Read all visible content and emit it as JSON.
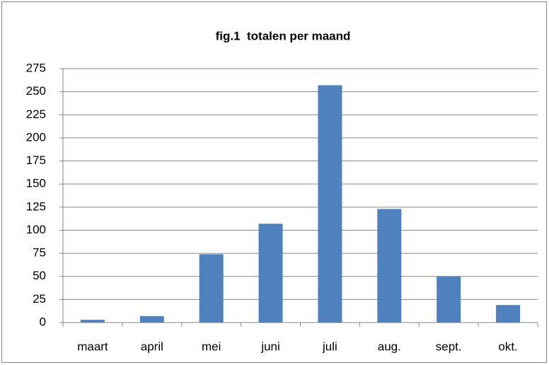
{
  "chart_data": {
    "type": "bar",
    "title": "fig.1  totalen per maand",
    "categories": [
      "maart",
      "april",
      "mei",
      "juni",
      "juli",
      "aug.",
      "sept.",
      "okt."
    ],
    "values": [
      3,
      7,
      74,
      107,
      257,
      123,
      50,
      19
    ],
    "color": "#4f81bd",
    "ylim": [
      0,
      275
    ],
    "yticks": [
      0,
      25,
      50,
      75,
      100,
      125,
      150,
      175,
      200,
      225,
      250,
      275
    ],
    "grid": true
  }
}
